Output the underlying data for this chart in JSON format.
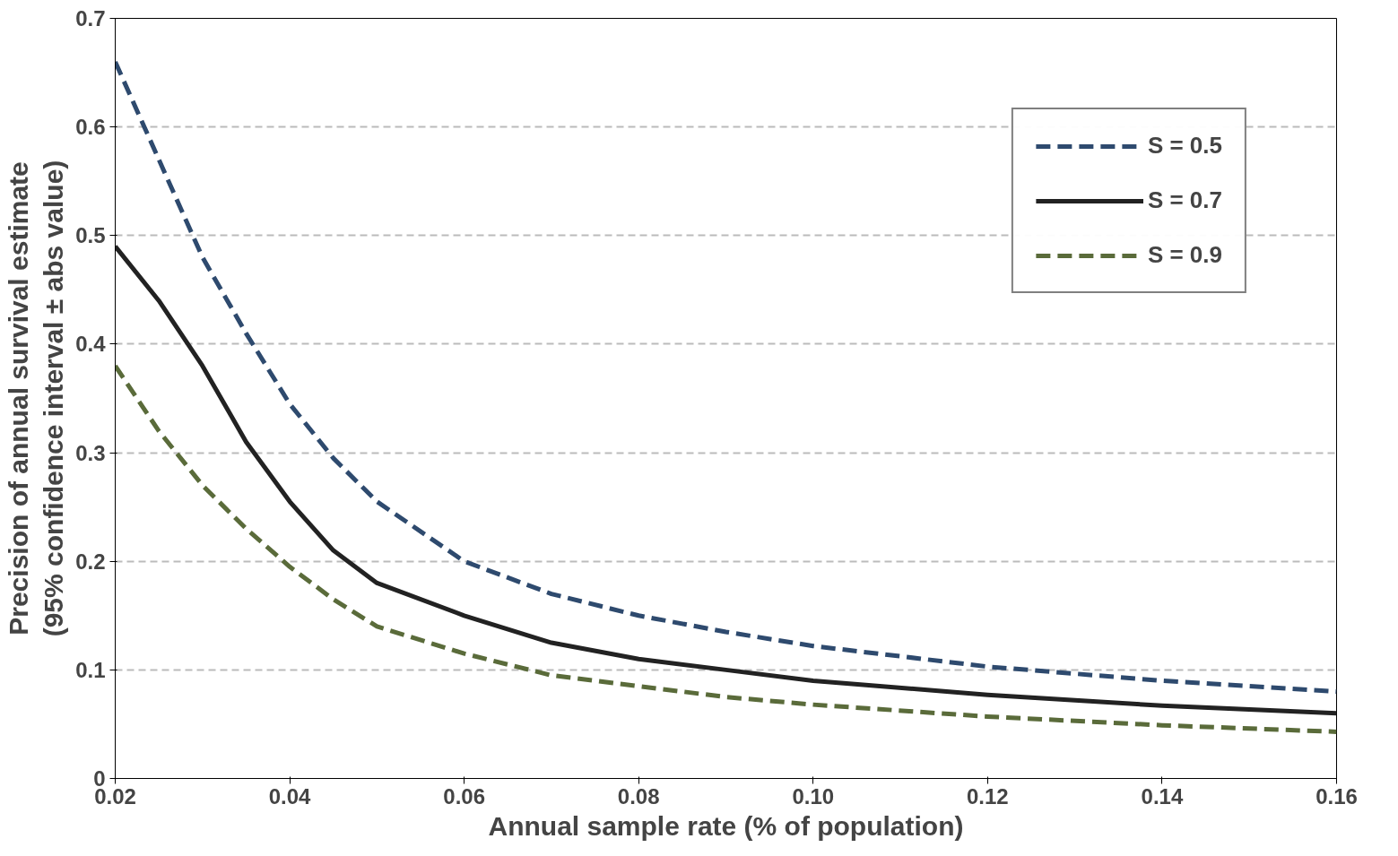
{
  "chart_data": {
    "type": "line",
    "xlabel": "Annual sample rate (% of population)",
    "ylabel": "Precision of annual survival estimate\n(95% confidence interval ± abs value)",
    "x": [
      0.02,
      0.025,
      0.03,
      0.035,
      0.04,
      0.045,
      0.05,
      0.06,
      0.07,
      0.08,
      0.09,
      0.1,
      0.12,
      0.14,
      0.16
    ],
    "series": [
      {
        "name": "S = 0.5",
        "color": "#2e4a6e",
        "line_style": "dashed",
        "values": [
          0.66,
          0.57,
          0.48,
          0.41,
          0.345,
          0.295,
          0.255,
          0.2,
          0.17,
          0.15,
          0.135,
          0.122,
          0.103,
          0.09,
          0.08
        ]
      },
      {
        "name": "S = 0.7",
        "color": "#222222",
        "line_style": "solid",
        "values": [
          0.49,
          0.44,
          0.38,
          0.31,
          0.255,
          0.21,
          0.18,
          0.15,
          0.125,
          0.11,
          0.1,
          0.09,
          0.077,
          0.067,
          0.06
        ]
      },
      {
        "name": "S = 0.9",
        "color": "#5a6b3a",
        "line_style": "dashed",
        "values": [
          0.38,
          0.32,
          0.27,
          0.23,
          0.195,
          0.165,
          0.14,
          0.115,
          0.095,
          0.085,
          0.075,
          0.068,
          0.057,
          0.049,
          0.043
        ]
      }
    ],
    "xlim": [
      0.02,
      0.16
    ],
    "ylim": [
      0,
      0.7
    ],
    "xticks": [
      0.02,
      0.04,
      0.06,
      0.08,
      {
        "value": 0.1,
        "label": "0.10"
      },
      0.12,
      0.14,
      0.16
    ],
    "yticks": [
      0,
      0.1,
      0.2,
      0.3,
      0.4,
      0.5,
      0.6,
      0.7
    ],
    "grid": "y",
    "legend": "top right",
    "marker": "none"
  }
}
